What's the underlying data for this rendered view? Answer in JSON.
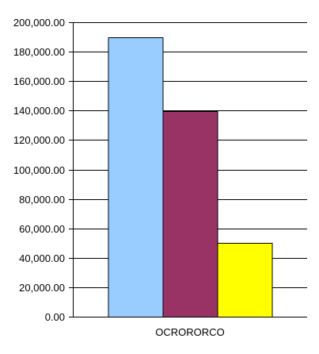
{
  "chart_data": {
    "type": "bar",
    "categories": [
      "OCRORORCO"
    ],
    "series": [
      {
        "values": [
          190000
        ],
        "color": "#99CCFF"
      },
      {
        "values": [
          139500
        ],
        "color": "#993366"
      },
      {
        "values": [
          50000
        ],
        "color": "#FFFF00"
      }
    ],
    "title": "",
    "xlabel": "",
    "ylabel": "",
    "ylim": [
      0,
      200000
    ],
    "ytick_step": 20000,
    "ytick_labels": [
      "0.00",
      "20,000.00",
      "40,000.00",
      "60,000.00",
      "80,000.00",
      "100,000.00",
      "120,000.00",
      "140,000.00",
      "160,000.00",
      "180,000.00",
      "200,000.00"
    ],
    "grid": true,
    "legend": "none"
  }
}
